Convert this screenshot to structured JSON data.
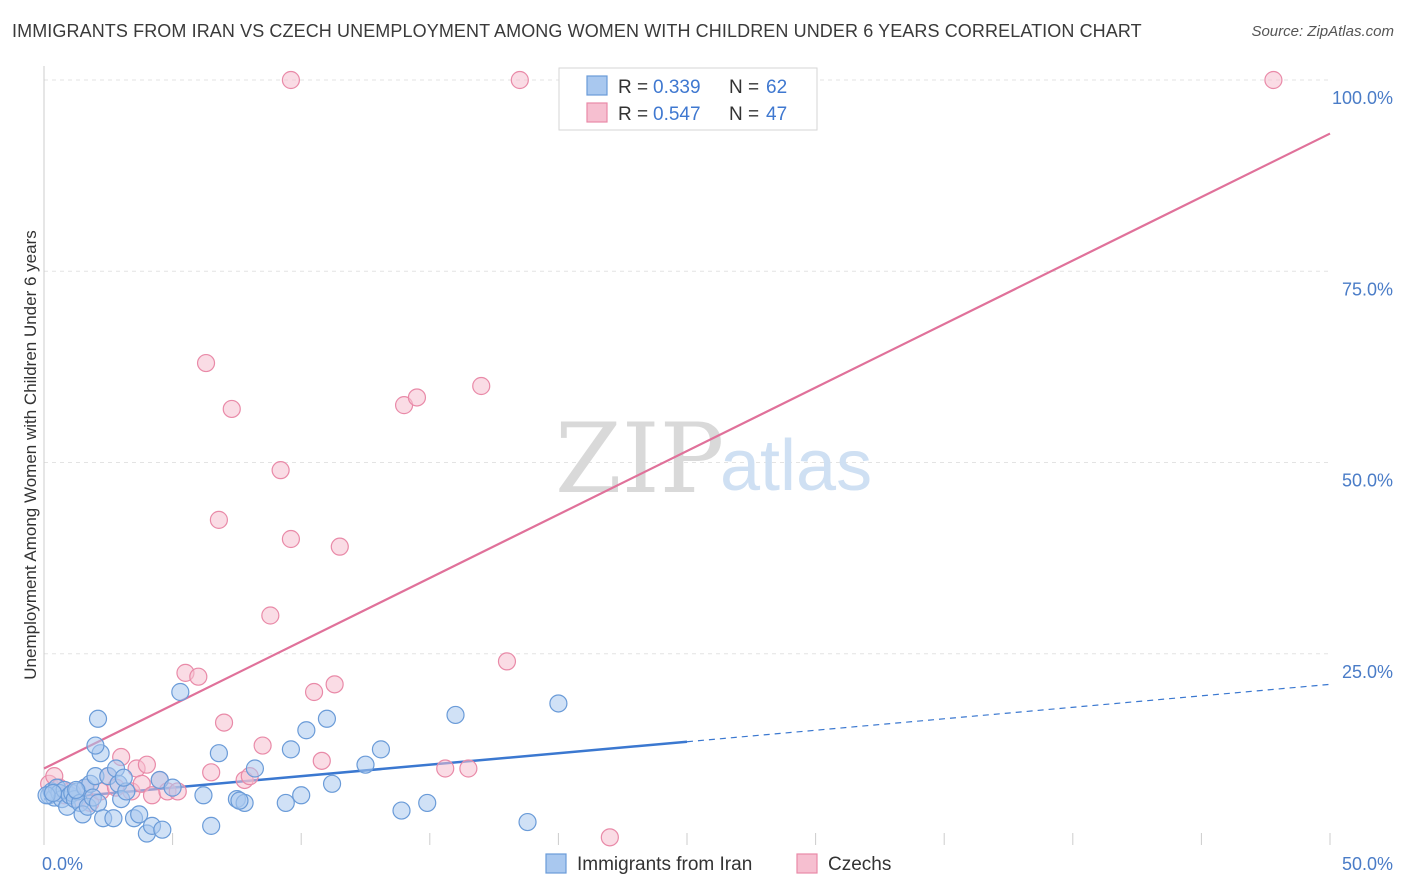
{
  "title": "IMMIGRANTS FROM IRAN VS CZECH UNEMPLOYMENT AMONG WOMEN WITH CHILDREN UNDER 6 YEARS CORRELATION CHART",
  "source": "Source: ZipAtlas.com",
  "watermark": {
    "zip": "ZIP",
    "atlas": "atlas"
  },
  "colors": {
    "iran_fill": "#a9c8ef",
    "iran_stroke": "#6a9bd8",
    "iran_line": "#3b78d0",
    "czech_fill": "#f6bfd0",
    "czech_stroke": "#e98aa8",
    "czech_line": "#e0719a",
    "grid": "#e3e3e3",
    "tick_text": "#4a7cc7"
  },
  "legend": [
    {
      "r_label": "R = ",
      "r_value": "0.339",
      "n_label": "N = ",
      "n_value": "62"
    },
    {
      "r_label": "R = ",
      "r_value": "0.547",
      "n_label": "N = ",
      "n_value": "47"
    }
  ],
  "chart_data": {
    "type": "scatter",
    "title": "IMMIGRANTS FROM IRAN VS CZECH UNEMPLOYMENT AMONG WOMEN WITH CHILDREN UNDER 6 YEARS CORRELATION CHART",
    "xlabel": "",
    "ylabel": "Unemployment Among Women with Children Under 6 years",
    "xlim": [
      0,
      50
    ],
    "ylim": [
      0,
      100
    ],
    "x_tick_labels": [
      {
        "value": 0,
        "label": "0.0%"
      },
      {
        "value": 50,
        "label": "50.0%"
      }
    ],
    "y_tick_labels": [
      {
        "value": 25,
        "label": "25.0%"
      },
      {
        "value": 50,
        "label": "50.0%"
      },
      {
        "value": 75,
        "label": "75.0%"
      },
      {
        "value": 100,
        "label": "100.0%"
      }
    ],
    "grid": true,
    "legend_position": "top-center",
    "series": [
      {
        "name": "Immigrants from Iran",
        "r": 0.339,
        "n": 62,
        "trend": {
          "x0": 0,
          "y0": 6.0,
          "x1": 25,
          "y1": 13.5,
          "dashed_to_x": 50,
          "dashed_to_y": 21.0
        },
        "points": [
          [
            0.2,
            6.5
          ],
          [
            0.3,
            7.0
          ],
          [
            0.4,
            6.2
          ],
          [
            0.5,
            7.5
          ],
          [
            0.6,
            6.8
          ],
          [
            0.7,
            6.0
          ],
          [
            0.8,
            7.2
          ],
          [
            0.9,
            5.0
          ],
          [
            1.0,
            6.5
          ],
          [
            1.1,
            6.8
          ],
          [
            1.2,
            6.0
          ],
          [
            1.3,
            7.0
          ],
          [
            1.4,
            5.5
          ],
          [
            1.5,
            4.0
          ],
          [
            1.6,
            7.5
          ],
          [
            1.7,
            5.0
          ],
          [
            1.8,
            8.0
          ],
          [
            1.9,
            6.2
          ],
          [
            2.0,
            9.0
          ],
          [
            2.1,
            5.5
          ],
          [
            2.2,
            12.0
          ],
          [
            2.3,
            3.5
          ],
          [
            2.5,
            9.0
          ],
          [
            2.7,
            3.5
          ],
          [
            2.8,
            10.0
          ],
          [
            2.9,
            8.0
          ],
          [
            3.0,
            6.0
          ],
          [
            3.2,
            7.0
          ],
          [
            3.5,
            3.5
          ],
          [
            3.7,
            4.0
          ],
          [
            4.0,
            1.5
          ],
          [
            4.2,
            2.5
          ],
          [
            4.5,
            8.5
          ],
          [
            4.6,
            2.0
          ],
          [
            5.0,
            7.5
          ],
          [
            6.2,
            6.5
          ],
          [
            6.5,
            2.5
          ],
          [
            6.8,
            12.0
          ],
          [
            7.5,
            6.0
          ],
          [
            7.8,
            5.5
          ],
          [
            8.2,
            10.0
          ],
          [
            9.4,
            5.5
          ],
          [
            9.6,
            12.5
          ],
          [
            10.0,
            6.5
          ],
          [
            10.2,
            15.0
          ],
          [
            11.0,
            16.5
          ],
          [
            11.2,
            8.0
          ],
          [
            12.5,
            10.5
          ],
          [
            13.1,
            12.5
          ],
          [
            13.9,
            4.5
          ],
          [
            14.9,
            5.5
          ],
          [
            16.0,
            17.0
          ],
          [
            18.8,
            3.0
          ],
          [
            20.0,
            18.5
          ],
          [
            5.3,
            20.0
          ],
          [
            2.1,
            16.5
          ],
          [
            2.0,
            13.0
          ],
          [
            0.1,
            6.5
          ],
          [
            0.35,
            6.8
          ],
          [
            1.25,
            7.2
          ],
          [
            3.1,
            8.8
          ],
          [
            7.6,
            5.8
          ]
        ]
      },
      {
        "name": "Czechs",
        "r": 0.547,
        "n": 47,
        "trend": {
          "x0": 0,
          "y0": 10.0,
          "x1": 50,
          "y1": 93.0
        },
        "points": [
          [
            0.2,
            8.0
          ],
          [
            0.4,
            9.0
          ],
          [
            0.6,
            7.5
          ],
          [
            0.8,
            6.5
          ],
          [
            1.0,
            7.0
          ],
          [
            1.3,
            6.0
          ],
          [
            1.6,
            7.5
          ],
          [
            1.8,
            5.5
          ],
          [
            2.2,
            7.0
          ],
          [
            2.5,
            9.0
          ],
          [
            2.8,
            7.5
          ],
          [
            3.0,
            11.5
          ],
          [
            3.4,
            7.0
          ],
          [
            3.6,
            10.0
          ],
          [
            3.8,
            8.0
          ],
          [
            4.0,
            10.5
          ],
          [
            4.2,
            6.5
          ],
          [
            4.5,
            8.5
          ],
          [
            4.8,
            7.0
          ],
          [
            5.2,
            7.0
          ],
          [
            5.5,
            22.5
          ],
          [
            6.0,
            22.0
          ],
          [
            6.5,
            9.5
          ],
          [
            7.0,
            16.0
          ],
          [
            7.8,
            8.5
          ],
          [
            8.0,
            9.0
          ],
          [
            8.5,
            13.0
          ],
          [
            8.8,
            30.0
          ],
          [
            9.2,
            49.0
          ],
          [
            9.6,
            40.0
          ],
          [
            10.5,
            20.0
          ],
          [
            10.8,
            11.0
          ],
          [
            11.3,
            21.0
          ],
          [
            11.5,
            39.0
          ],
          [
            6.3,
            63.0
          ],
          [
            7.3,
            57.0
          ],
          [
            6.8,
            42.5
          ],
          [
            9.6,
            100.0
          ],
          [
            18.5,
            100.0
          ],
          [
            47.8,
            100.0
          ],
          [
            14.0,
            57.5
          ],
          [
            14.5,
            58.5
          ],
          [
            17.0,
            60.0
          ],
          [
            15.6,
            10.0
          ],
          [
            16.5,
            10.0
          ],
          [
            18.0,
            24.0
          ],
          [
            22.0,
            1.0
          ]
        ]
      }
    ]
  },
  "bottom_legend": [
    {
      "label": "Immigrants from Iran"
    },
    {
      "label": "Czechs"
    }
  ]
}
